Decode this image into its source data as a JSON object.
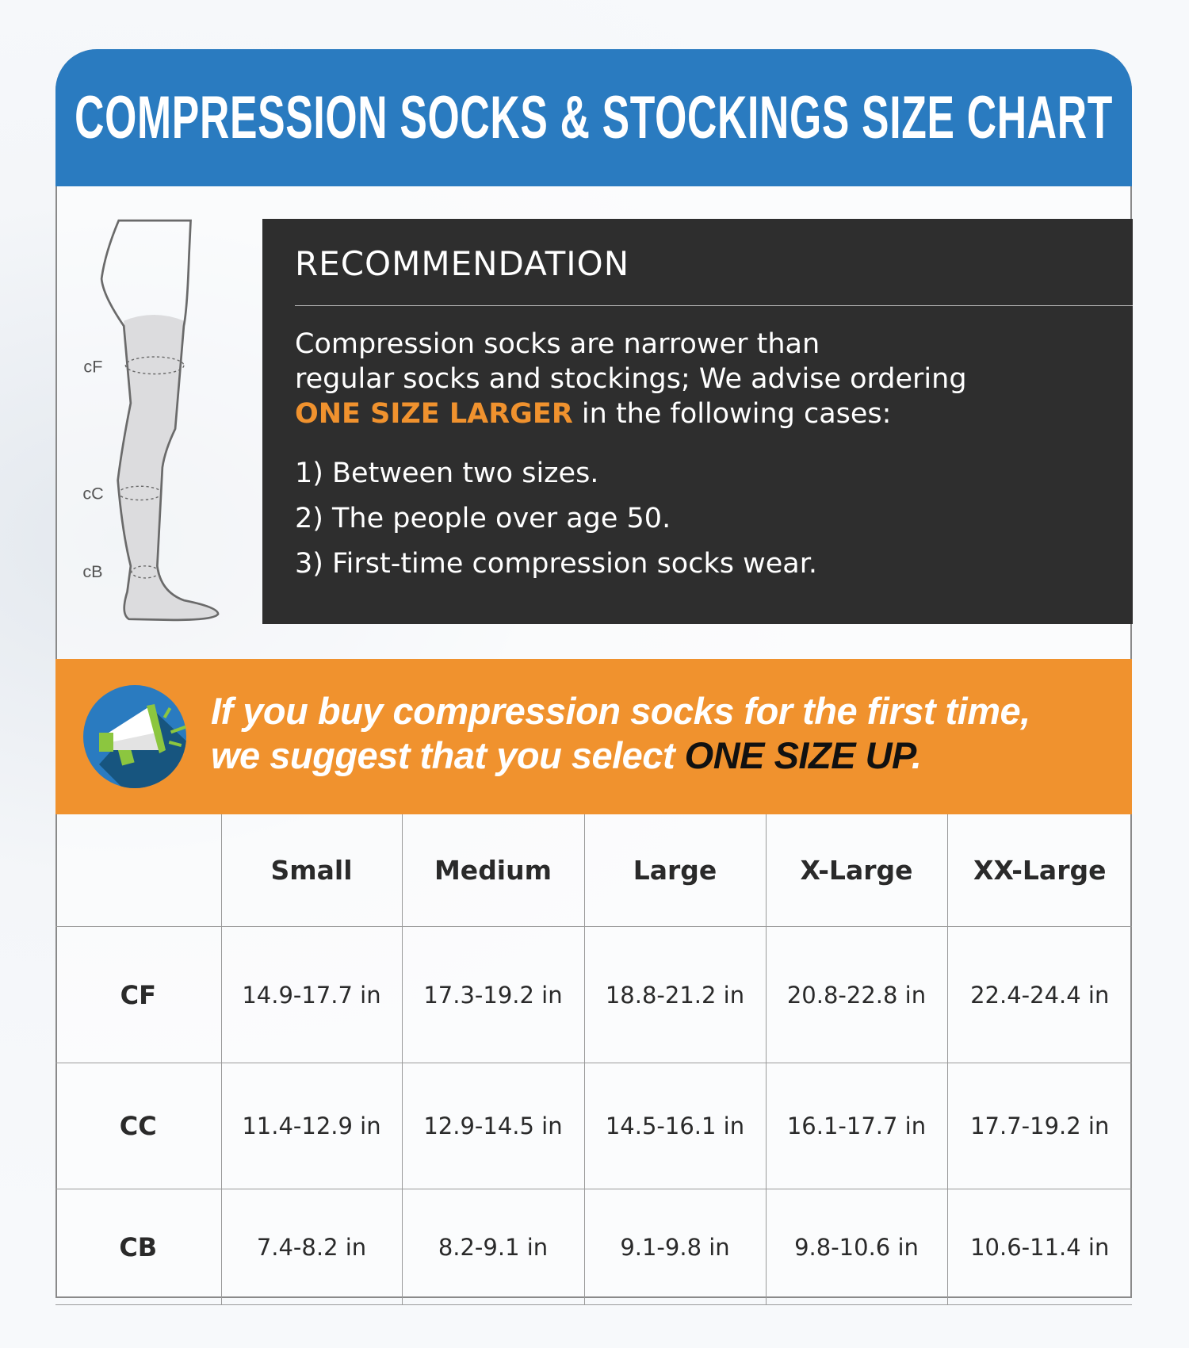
{
  "title": "COMPRESSION SOCKS & STOCKINGS SIZE CHART",
  "colors": {
    "header": "#2a7bc0",
    "accent": "#f0922e",
    "panel": "#2e2e2e"
  },
  "diagram": {
    "labels": [
      "cF",
      "cC",
      "cB"
    ]
  },
  "recommendation": {
    "heading": "RECOMMENDATION",
    "line1": "Compression socks are narrower than",
    "line2": "regular socks and stockings; We advise ordering",
    "highlight": "ONE SIZE LARGER",
    "line3_rest": " in the following cases:",
    "items": [
      "1) Between two sizes.",
      "2) The people over age 50.",
      "3) First-time compression socks wear."
    ]
  },
  "banner": {
    "icon": "megaphone-icon",
    "line1": "If you buy compression socks for the first time,",
    "line2": "we suggest that you select ",
    "highlight": "ONE SIZE UP",
    "end": "."
  },
  "table": {
    "headers": [
      "",
      "Small",
      "Medium",
      "Large",
      "X-Large",
      "XX-Large"
    ],
    "rows": [
      {
        "label": "CF",
        "values": [
          "14.9-17.7 in",
          "17.3-19.2 in",
          "18.8-21.2 in",
          "20.8-22.8 in",
          "22.4-24.4 in"
        ]
      },
      {
        "label": "CC",
        "values": [
          "11.4-12.9 in",
          "12.9-14.5 in",
          "14.5-16.1 in",
          "16.1-17.7 in",
          "17.7-19.2 in"
        ]
      },
      {
        "label": "CB",
        "values": [
          "7.4-8.2 in",
          "8.2-9.1 in",
          "9.1-9.8 in",
          "9.8-10.6 in",
          "10.6-11.4 in"
        ]
      }
    ]
  }
}
